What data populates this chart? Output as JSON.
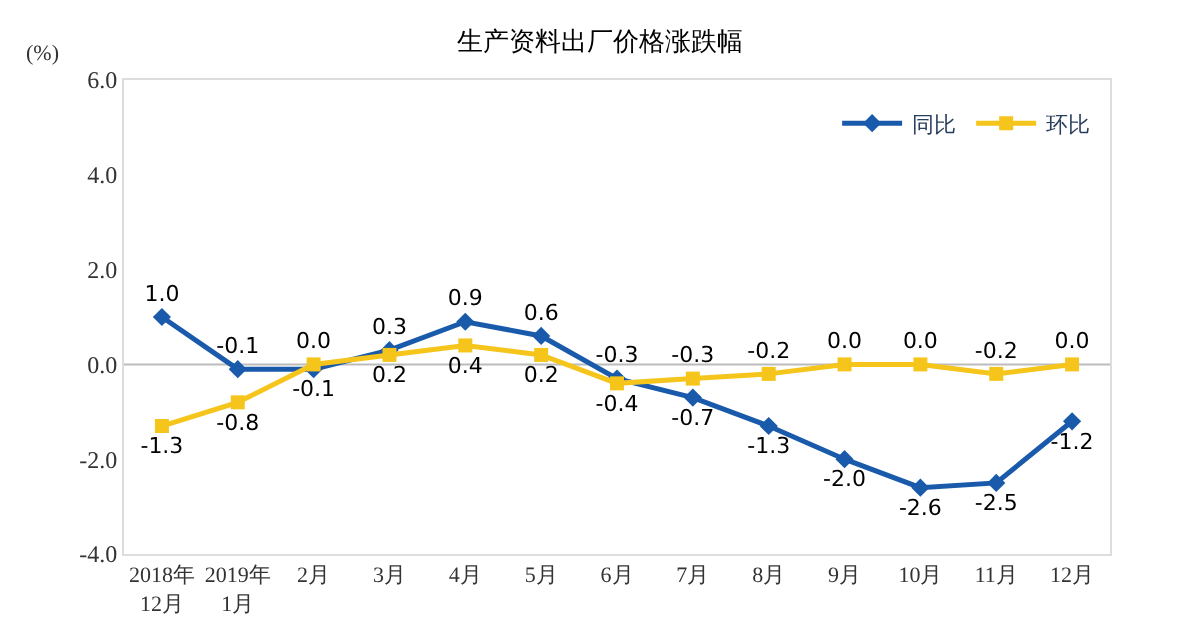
{
  "chart_data": {
    "type": "line",
    "title": "生产资料出厂价格涨跌幅",
    "ylabel": "(%)",
    "categories": [
      "2018年\n12月",
      "2019年\n1月",
      "2月",
      "3月",
      "4月",
      "5月",
      "6月",
      "7月",
      "8月",
      "9月",
      "10月",
      "11月",
      "12月"
    ],
    "series": [
      {
        "name": "同比",
        "color": "#1a5aab",
        "marker": "diamond",
        "values": [
          1.0,
          -0.1,
          -0.1,
          0.3,
          0.9,
          0.6,
          -0.3,
          -0.7,
          -1.3,
          -2.0,
          -2.6,
          -2.5,
          -1.2
        ],
        "value_labels": [
          "1.0",
          "-0.1",
          "-0.1",
          "0.3",
          "0.9",
          "0.6",
          "-0.3",
          "-0.7",
          "-1.3",
          "-2.0",
          "-2.6",
          "-2.5",
          "-1.2"
        ]
      },
      {
        "name": "环比",
        "color": "#f5c51c",
        "marker": "square",
        "values": [
          -1.3,
          -0.8,
          0.0,
          0.2,
          0.4,
          0.2,
          -0.4,
          -0.3,
          -0.2,
          0.0,
          0.0,
          -0.2,
          0.0
        ],
        "value_labels": [
          "-1.3",
          "-0.8",
          "0.0",
          "0.2",
          "0.4",
          "0.2",
          "-0.4",
          "-0.3",
          "-0.2",
          "0.0",
          "0.0",
          "-0.2",
          "0.0"
        ]
      }
    ],
    "ylim": [
      -4,
      6
    ],
    "yticks": [
      {
        "value": -4,
        "label": "-4.0"
      },
      {
        "value": -2,
        "label": "-2.0"
      },
      {
        "value": 0,
        "label": "0.0"
      },
      {
        "value": 2,
        "label": "2.0"
      },
      {
        "value": 4,
        "label": "4.0"
      },
      {
        "value": 6,
        "label": "6.0"
      }
    ],
    "ref_lines": [
      {
        "axis": "y",
        "value": 0,
        "color": "#bbbbbb"
      }
    ],
    "grid": false,
    "legend": "top right",
    "line_style": "solid"
  }
}
